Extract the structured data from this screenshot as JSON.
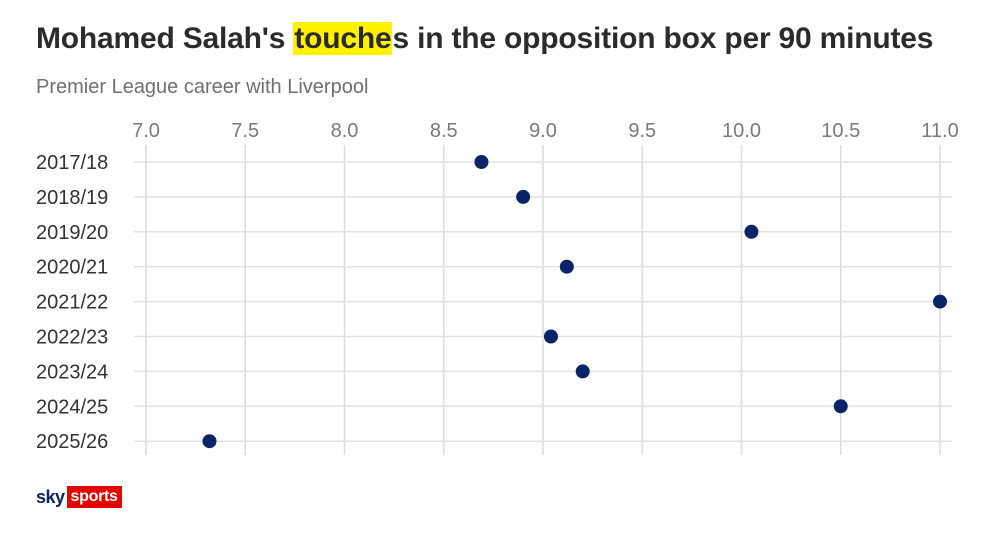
{
  "header": {
    "title_before": "Mohamed Salah's ",
    "title_highlight": "touche",
    "title_after": "s in the opposition box per 90 minutes",
    "subtitle": "Premier League career with Liverpool"
  },
  "brand": {
    "sky": "sky",
    "sports": "sports",
    "sky_color": "#0a2468",
    "sports_color": "#e10600"
  },
  "chart_data": {
    "type": "scatter",
    "title": "Mohamed Salah's touches in the opposition box per 90 minutes",
    "subtitle": "Premier League career with Liverpool",
    "xlim": [
      7.0,
      11.0
    ],
    "x_ticks": [
      "7.0",
      "7.5",
      "8.0",
      "8.5",
      "9.0",
      "9.5",
      "10.0",
      "10.5",
      "11.0"
    ],
    "x_tick_values": [
      7.0,
      7.5,
      8.0,
      8.5,
      9.0,
      9.5,
      10.0,
      10.5,
      11.0
    ],
    "x_axis_position": "top",
    "grid": true,
    "categories": [
      "2017/18",
      "2018/19",
      "2019/20",
      "2020/21",
      "2021/22",
      "2022/23",
      "2023/24",
      "2024/25",
      "2025/26"
    ],
    "values": [
      8.69,
      8.9,
      10.05,
      9.12,
      11.0,
      9.04,
      9.2,
      10.5,
      7.32
    ],
    "point_color": "#0a2468",
    "highlight_color": "#fff200"
  }
}
